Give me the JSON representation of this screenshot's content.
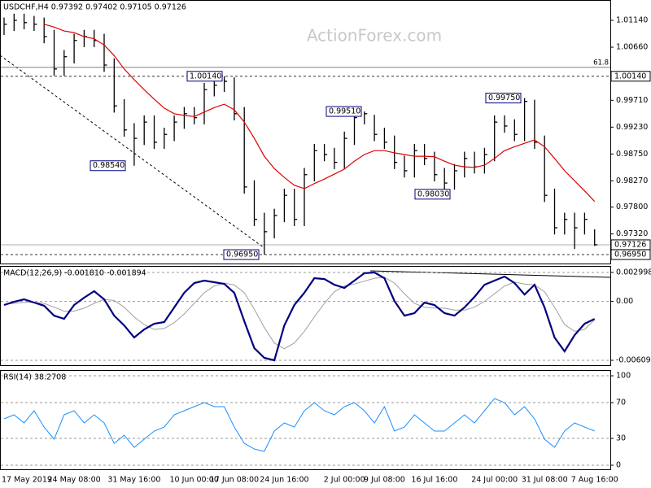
{
  "chart_data": [
    {
      "type": "ohlc",
      "title": "USDCHF,H4 0.97392 0.97402 0.97105 0.97126",
      "watermark": "ActionForex.com",
      "categories": [
        "17 May 2019",
        null,
        null,
        null,
        null,
        null,
        null,
        "24 May 08:00",
        null,
        null,
        null,
        null,
        null,
        "31 May 16:00",
        null,
        null,
        null,
        null,
        null,
        "10 Jun 00:00",
        null,
        null,
        null,
        "17 Jun 08:00",
        null,
        null,
        null,
        null,
        "24 Jun 16:00",
        null,
        null,
        null,
        null,
        null,
        "2 Jul 00:00",
        null,
        null,
        null,
        "9 Jul 08:00",
        null,
        null,
        null,
        null,
        "16 Jul 16:00",
        null,
        null,
        null,
        null,
        null,
        "24 Jul 00:00",
        null,
        null,
        null,
        null,
        "31 Jul 08:00",
        null,
        null,
        null,
        null,
        "7 Aug 16:00"
      ],
      "high": [
        1.0119,
        1.0126,
        1.0126,
        1.0122,
        1.0119,
        1.0097,
        1.0061,
        1.009,
        1.0097,
        1.0097,
        1.009,
        1.0046,
        0.9973,
        0.993,
        0.9944,
        0.9944,
        0.9922,
        0.9944,
        0.9959,
        0.9959,
        1.0002,
        1.001,
        1.0014,
        1.0012,
        0.9959,
        0.9828,
        0.977,
        0.9777,
        0.9813,
        0.9813,
        0.985,
        0.9893,
        0.9893,
        0.9886,
        0.9915,
        0.9948,
        0.9951,
        0.9945,
        0.9922,
        0.9908,
        0.9872,
        0.9893,
        0.9893,
        0.9879,
        0.985,
        0.9857,
        0.9879,
        0.9879,
        0.9886,
        0.9944,
        0.9944,
        0.9937,
        0.9975,
        0.9972,
        0.9908,
        0.9813,
        0.977,
        0.977,
        0.977,
        0.97402
      ],
      "low": [
        1.0088,
        1.0095,
        1.0098,
        1.0095,
        1.0073,
        1.0015,
        1.0015,
        1.0037,
        1.0066,
        1.0066,
        1.0022,
        0.9949,
        0.9906,
        0.9854,
        0.9891,
        0.9884,
        0.9884,
        0.9898,
        0.992,
        0.9928,
        0.9928,
        0.9978,
        0.9986,
        0.9935,
        0.9804,
        0.9746,
        0.9695,
        0.9724,
        0.9753,
        0.9746,
        0.9746,
        0.9826,
        0.9862,
        0.9848,
        0.9848,
        0.9891,
        0.9928,
        0.9898,
        0.9884,
        0.9848,
        0.9833,
        0.9833,
        0.9855,
        0.9826,
        0.9803,
        0.9811,
        0.9833,
        0.984,
        0.984,
        0.9862,
        0.9913,
        0.9898,
        0.9898,
        0.9884,
        0.9789,
        0.9731,
        0.9731,
        0.9705,
        0.9731,
        0.97105
      ],
      "close": [
        1.0107,
        1.0114,
        1.011,
        1.0107,
        1.0085,
        1.0027,
        1.0049,
        1.0078,
        1.0085,
        1.0078,
        1.0034,
        0.9961,
        0.9918,
        0.9903,
        0.9932,
        0.9896,
        0.991,
        0.9932,
        0.9947,
        0.994,
        0.999,
        0.9998,
        1.0005,
        0.9947,
        0.9816,
        0.9758,
        0.9736,
        0.9765,
        0.9801,
        0.9758,
        0.9838,
        0.9881,
        0.9874,
        0.986,
        0.9903,
        0.994,
        0.9947,
        0.991,
        0.9896,
        0.986,
        0.9845,
        0.9881,
        0.9867,
        0.9838,
        0.9823,
        0.9845,
        0.9867,
        0.9852,
        0.9874,
        0.9932,
        0.9925,
        0.991,
        0.9969,
        0.9896,
        0.9801,
        0.9743,
        0.9758,
        0.9743,
        0.9758,
        0.97126
      ],
      "color": "#000000",
      "ma": {
        "color": "#e00000",
        "values": [
          null,
          null,
          null,
          null,
          1.0107,
          1.0102,
          1.0095,
          1.0092,
          1.0085,
          1.0081,
          1.007,
          1.0051,
          1.0027,
          1.0008,
          0.999,
          0.9973,
          0.9957,
          0.9947,
          0.9944,
          0.9942,
          0.995,
          0.9958,
          0.9964,
          0.9954,
          0.9932,
          0.9903,
          0.9871,
          0.9849,
          0.9833,
          0.9819,
          0.9813,
          0.9822,
          0.983,
          0.9839,
          0.9848,
          0.9862,
          0.9874,
          0.9881,
          0.9881,
          0.9877,
          0.9874,
          0.9871,
          0.9871,
          0.987,
          0.9862,
          0.9855,
          0.9852,
          0.9851,
          0.9855,
          0.9867,
          0.9881,
          0.9888,
          0.9894,
          0.99,
          0.9888,
          0.9867,
          0.9845,
          0.9827,
          0.9809,
          0.979
        ]
      },
      "ylim": [
        0.96776,
        1.01504
      ],
      "yticks": [
        {
          "value": 1.0114,
          "label": "1.01140"
        },
        {
          "value": 1.0066,
          "label": "1.00660"
        },
        {
          "value": 0.9971,
          "label": "0.99710"
        },
        {
          "value": 0.9923,
          "label": "0.99230"
        },
        {
          "value": 0.9875,
          "label": "0.98750"
        },
        {
          "value": 0.9827,
          "label": "0.98270"
        },
        {
          "value": 0.978,
          "label": "0.97800"
        },
        {
          "value": 0.9732,
          "label": "0.97320"
        }
      ],
      "levels": [
        {
          "value": 1.0014,
          "label": "1.00140",
          "style": "dashed",
          "color": "#333333"
        },
        {
          "value": 0.9695,
          "label": "0.96950",
          "style": "dashed",
          "color": "#333333"
        },
        {
          "value": 0.97126,
          "label": "0.97126",
          "style": "solid",
          "color": "#b0b0b0"
        }
      ],
      "fib": {
        "value": 1.003,
        "label": "61.8",
        "color": "#808080"
      },
      "annotations": [
        {
          "value": 1.0014,
          "label": "1.00140"
        },
        {
          "value": 0.9854,
          "label": "0.98540"
        },
        {
          "value": 0.9951,
          "label": "0.99510"
        },
        {
          "value": 0.9803,
          "label": "0.98030"
        },
        {
          "value": 0.9975,
          "label": "0.99750"
        },
        {
          "value": 0.9695,
          "label": "0.96950"
        }
      ],
      "grid": false
    },
    {
      "type": "line",
      "title": "MACD(12,26,9) -0.001810 -0.001894",
      "series": [
        {
          "color": "#000080",
          "values": [
            -0.00037,
            -3e-05,
            0.00022,
            -0.00012,
            -0.00045,
            -0.00147,
            -0.0018,
            -0.00037,
            0.00039,
            0.00106,
            0.00022,
            -0.00147,
            -0.00248,
            -0.00374,
            -0.0029,
            -0.00231,
            -0.00214,
            -0.00062,
            0.00089,
            0.0019,
            0.00216,
            0.00199,
            0.00182,
            0.00089,
            -0.00205,
            -0.00483,
            -0.00584,
            -0.006097,
            -0.00248,
            -0.00037,
            0.00089,
            0.00241,
            0.00232,
            0.00173,
            0.0014,
            0.00216,
            0.00292,
            0.002998,
            0.00241,
            5e-05,
            -0.00147,
            -0.00121,
            -0.00012,
            -0.00037,
            -0.00121,
            -0.00147,
            -0.00062,
            0.00047,
            0.00173,
            0.00216,
            0.00258,
            0.0019,
            0.00072,
            0.00173,
            -0.00062,
            -0.00374,
            -0.00517,
            -0.00349,
            -0.00231,
            -0.00181
          ]
        },
        {
          "color": "#a0a0a0",
          "values": [
            -0.0003,
            -0.0002,
            -0.0001,
            -0.0001,
            -0.0002,
            -0.0006,
            -0.001,
            -0.001,
            -0.0007,
            -0.0002,
            0.0002,
            0.0001,
            -0.0006,
            -0.0016,
            -0.0024,
            -0.0029,
            -0.0028,
            -0.0022,
            -0.0013,
            -0.0002,
            0.0009,
            0.0016,
            0.0019,
            0.0017,
            0.0009,
            -0.0008,
            -0.0027,
            -0.0043,
            -0.0049,
            -0.0043,
            -0.0031,
            -0.0016,
            -0.0002,
            0.001,
            0.0016,
            0.0018,
            0.0021,
            0.0024,
            0.0025,
            0.0019,
            0.0008,
            -0.0002,
            -0.0006,
            -0.0007,
            -0.0007,
            -0.0009,
            -0.0009,
            -0.0006,
            0,
            0.0008,
            0.0016,
            0.002,
            0.0018,
            0.0017,
            0.001,
            -0.0006,
            -0.0024,
            -0.0031,
            -0.0029,
            -0.001894
          ]
        }
      ],
      "ylim": [
        -0.006686,
        0.003672
      ],
      "yticks": [
        0.002998,
        {
          "value": 0,
          "label": "0.00"
        },
        -0.006097
      ],
      "grid": true
    },
    {
      "type": "line",
      "title": "RSI(14) 38.2708",
      "series": [
        {
          "color": "#1e90ff",
          "values": [
            51.8,
            56.4,
            47.3,
            60.9,
            42.7,
            29.1,
            56.4,
            60.9,
            47.3,
            56.4,
            47.3,
            24.5,
            33.6,
            20.0,
            29.1,
            38.2,
            42.7,
            56.4,
            60.9,
            65.5,
            70.0,
            65.5,
            65.5,
            42.7,
            24.5,
            18.2,
            15.5,
            38.2,
            47.3,
            42.7,
            60.9,
            70.0,
            60.9,
            56.4,
            65.5,
            70.0,
            60.9,
            47.3,
            65.5,
            38.2,
            42.7,
            56.4,
            47.3,
            38.2,
            38.2,
            47.3,
            56.4,
            47.3,
            60.9,
            74.5,
            70.0,
            56.4,
            65.5,
            51.8,
            29.1,
            20.0,
            38.2,
            47.3,
            42.7,
            38.2708
          ]
        }
      ],
      "ylim": [
        -5.45,
        106.4
      ],
      "yticks": [
        100,
        70,
        30,
        0
      ],
      "grid": true
    }
  ]
}
